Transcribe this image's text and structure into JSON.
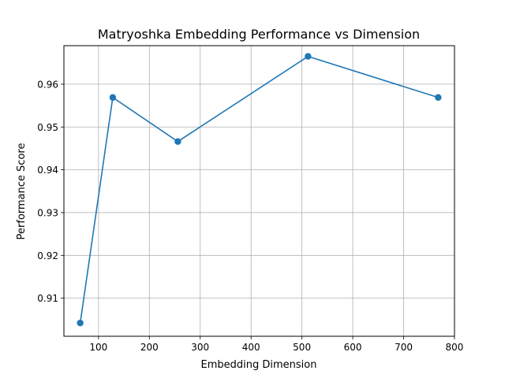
{
  "chart_data": {
    "type": "line",
    "title": "Matryoshka Embedding Performance vs Dimension",
    "xlabel": "Embedding Dimension",
    "ylabel": "Performance Score",
    "xlim": [
      31.95,
      800.05
    ],
    "ylim": [
      0.9011,
      0.969
    ],
    "xticks": [
      100,
      200,
      300,
      400,
      500,
      600,
      700,
      800
    ],
    "yticks": [
      0.91,
      0.92,
      0.93,
      0.94,
      0.95,
      0.96
    ],
    "xtick_labels": [
      "100",
      "200",
      "300",
      "400",
      "500",
      "600",
      "700",
      "800"
    ],
    "ytick_labels": [
      "0.91",
      "0.92",
      "0.93",
      "0.94",
      "0.95",
      "0.96"
    ],
    "grid": true,
    "series": [
      {
        "color": "#1f77b4",
        "marker": "circle",
        "x": [
          64,
          128,
          256,
          512,
          768
        ],
        "y": [
          0.9042,
          0.9569,
          0.9466,
          0.9665,
          0.9569
        ]
      }
    ]
  }
}
